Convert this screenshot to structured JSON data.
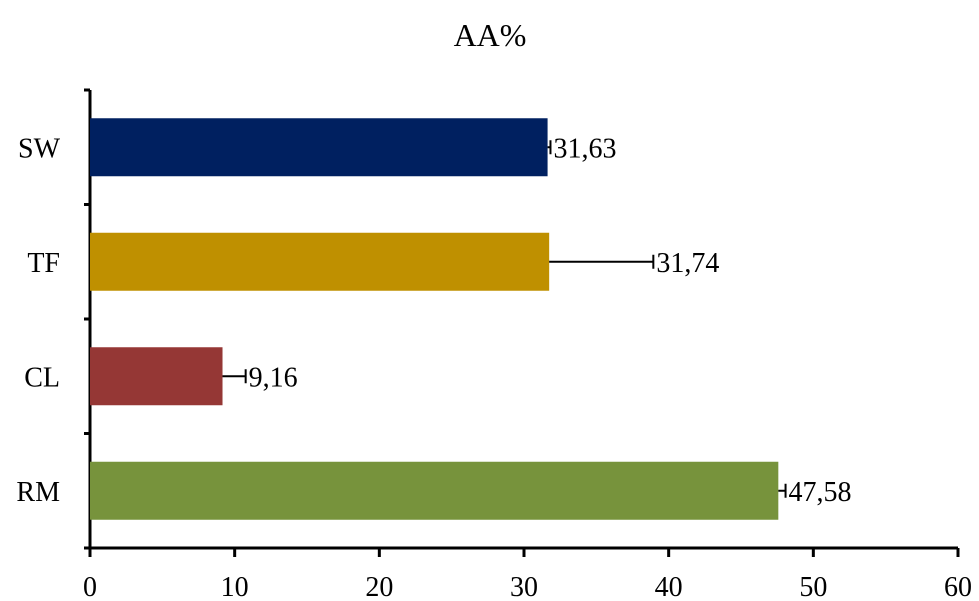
{
  "chart_data": {
    "type": "bar",
    "orientation": "horizontal",
    "title": "AA%",
    "xlabel": "",
    "ylabel": "",
    "categories": [
      "SW",
      "TF",
      "CL",
      "RM"
    ],
    "values": [
      31.63,
      31.74,
      9.16,
      47.58
    ],
    "value_labels": [
      "31,63",
      "31,74",
      "9,16",
      "47,58"
    ],
    "error_bars": [
      0.2,
      7.2,
      1.6,
      0.5
    ],
    "colors": [
      "#002060",
      "#BF9000",
      "#953735",
      "#77933C"
    ],
    "xlim": [
      0,
      60
    ],
    "xticks": [
      0,
      10,
      20,
      30,
      40,
      50,
      60
    ],
    "grid": false,
    "legend": "none"
  }
}
